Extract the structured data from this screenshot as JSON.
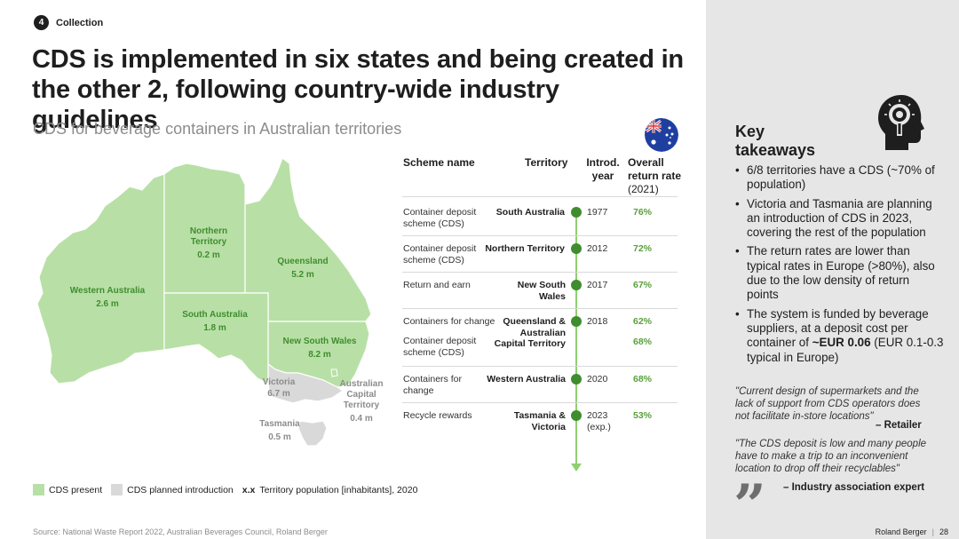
{
  "section": {
    "number": "4",
    "label": "Collection"
  },
  "title": "CDS is implemented in six states and being created in the other 2, following country-wide industry guidelines",
  "subtitle": "CDS for beverage containers in Australian territories",
  "map": {
    "present_color": "#b8e0a6",
    "planned_color": "#d9d9d9",
    "territories": [
      {
        "name": "Western Australia",
        "population": "2.6 m",
        "status": "present"
      },
      {
        "name": "Northern Territory",
        "population": "0.2 m",
        "status": "present"
      },
      {
        "name": "Queensland",
        "population": "5.2 m",
        "status": "present"
      },
      {
        "name": "South Australia",
        "population": "1.8 m",
        "status": "present"
      },
      {
        "name": "New South Wales",
        "population": "8.2 m",
        "status": "present"
      },
      {
        "name": "Victoria",
        "population": "6.7 m",
        "status": "planned"
      },
      {
        "name": "Australian Capital Territory",
        "population": "0.4 m",
        "status": "present"
      },
      {
        "name": "Tasmania",
        "population": "0.5 m",
        "status": "planned"
      }
    ]
  },
  "table": {
    "headers": {
      "scheme": "Scheme name",
      "territory": "Territory",
      "year": "Introd. year",
      "rate": "Overall return rate",
      "rate_sub": "(2021)"
    },
    "rows": [
      {
        "scheme": "Container deposit scheme (CDS)",
        "territory": "South Australia",
        "year": "1977",
        "rate": "76%"
      },
      {
        "scheme": "Container deposit scheme (CDS)",
        "territory": "Northern Territory",
        "year": "2012",
        "rate": "72%"
      },
      {
        "scheme": "Return and earn",
        "territory": "New South Wales",
        "year": "2017",
        "rate": "67%"
      },
      {
        "scheme": "Containers for change",
        "scheme2": "Container deposit scheme (CDS)",
        "territory": "Queensland & Australian Capital Territory",
        "year": "2018",
        "rate": "62%",
        "rate2": "68%"
      },
      {
        "scheme": "Containers for change",
        "territory": "Western Australia",
        "year": "2020",
        "rate": "68%"
      },
      {
        "scheme": "Recycle rewards",
        "territory": "Tasmania & Victoria",
        "year": "2023 (exp.)",
        "rate": "53%"
      }
    ]
  },
  "legend": {
    "present": "CDS present",
    "planned": "CDS planned introduction",
    "xx": "x.x",
    "population": "Territory population [inhabitants], 2020"
  },
  "source": "Source: National Waste Report 2022, Australian Beverages Council, Roland Berger",
  "footer": {
    "brand": "Roland Berger",
    "page": "28"
  },
  "takeaways": {
    "title": "Key takeaways",
    "bullets": [
      "6/8 territories have a CDS (~70% of population)",
      "Victoria and Tasmania are planning an introduction of CDS in 2023, covering the rest of the population",
      "The return rates are lower than typical rates in Europe (>80%), also due to the low density of return points"
    ],
    "bullet4_pre": "The system is funded by beverage suppliers, at a deposit cost per container of ",
    "bullet4_bold": "~EUR 0.06",
    "bullet4_post": " (EUR 0.1-0.3 typical in Europe)",
    "quote1": "\"Current design of supermarkets and the lack of support from CDS operators does not facilitate in-store locations\"",
    "quote1_source": "– Retailer",
    "quote2": "\"The CDS deposit is low and many people have to make a trip to an inconvenient location to drop off their recyclables\"",
    "quote2_source": "– Industry association expert"
  },
  "colors": {
    "accent_green": "#3f8d2e",
    "rate_green": "#5aa03c",
    "sidebar": "#e6e6e6"
  }
}
